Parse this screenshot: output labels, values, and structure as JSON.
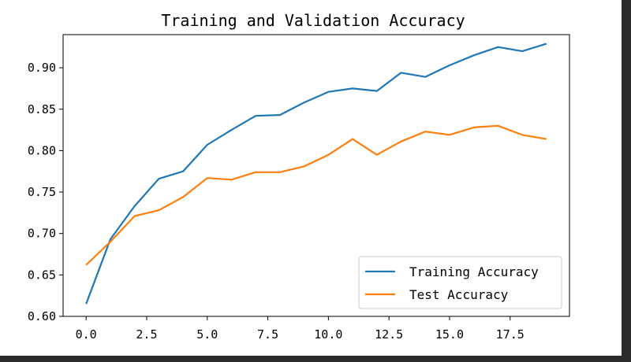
{
  "chart_data": {
    "type": "line",
    "title": "Training and Validation Accuracy",
    "xlabel": "",
    "ylabel": "",
    "xlim": [
      -0.95,
      19.95
    ],
    "ylim": [
      0.6,
      0.94
    ],
    "grid": false,
    "legend_position": "lower-right",
    "x": [
      0,
      1,
      2,
      3,
      4,
      5,
      6,
      7,
      8,
      9,
      10,
      11,
      12,
      13,
      14,
      15,
      16,
      17,
      18,
      19
    ],
    "x_ticks": [
      0,
      2.5,
      5,
      7.5,
      10,
      12.5,
      15,
      17.5
    ],
    "x_tick_labels": [
      "0.0",
      "2.5",
      "5.0",
      "7.5",
      "10.0",
      "12.5",
      "15.0",
      "17.5"
    ],
    "y_ticks": [
      0.6,
      0.65,
      0.7,
      0.75,
      0.8,
      0.85,
      0.9
    ],
    "y_tick_labels": [
      "0.60",
      "0.65",
      "0.70",
      "0.75",
      "0.80",
      "0.85",
      "0.90"
    ],
    "series": [
      {
        "name": "Training Accuracy",
        "color": "#1f77b4",
        "values": [
          0.615,
          0.693,
          0.733,
          0.766,
          0.775,
          0.807,
          0.825,
          0.842,
          0.843,
          0.858,
          0.871,
          0.875,
          0.872,
          0.894,
          0.889,
          0.903,
          0.915,
          0.925,
          0.92,
          0.929
        ]
      },
      {
        "name": "Test Accuracy",
        "color": "#ff7f0e",
        "values": [
          0.662,
          0.69,
          0.721,
          0.728,
          0.744,
          0.767,
          0.765,
          0.774,
          0.774,
          0.781,
          0.795,
          0.814,
          0.795,
          0.811,
          0.823,
          0.819,
          0.828,
          0.83,
          0.819,
          0.814
        ]
      }
    ]
  }
}
